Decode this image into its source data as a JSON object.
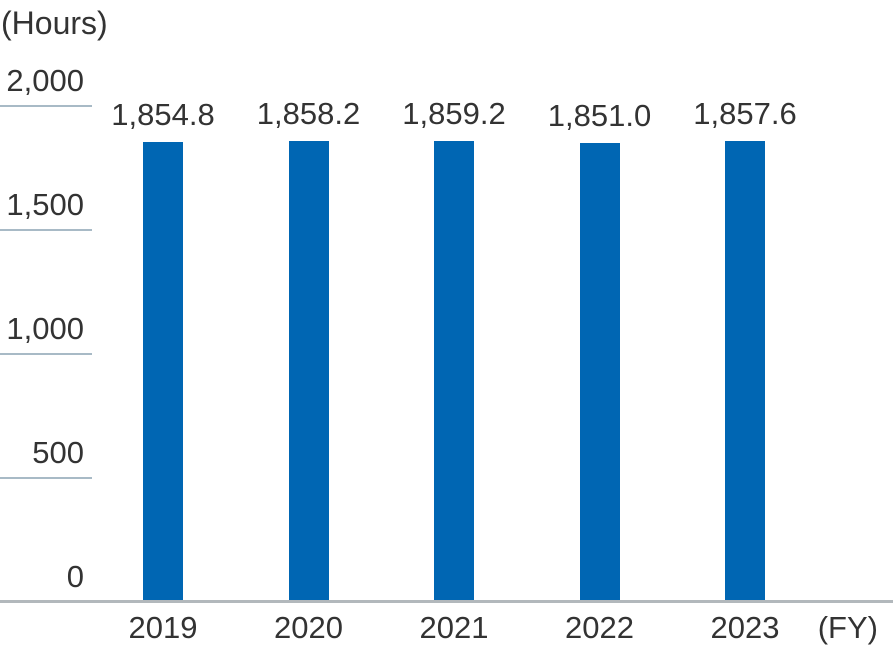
{
  "chart_data": {
    "type": "bar",
    "title": "",
    "unit_label": "(Hours)",
    "x_axis_label": "(FY)",
    "categories": [
      "2019",
      "2020",
      "2021",
      "2022",
      "2023"
    ],
    "values": [
      1854.8,
      1858.2,
      1859.2,
      1851.0,
      1857.6
    ],
    "value_labels": [
      "1,854.8",
      "1,858.2",
      "1,859.2",
      "1,851.0",
      "1,857.6"
    ],
    "y_ticks": [
      "2,000",
      "1,500",
      "1,000",
      "500",
      "0"
    ],
    "y_tick_values": [
      2000,
      1500,
      1000,
      500,
      0
    ],
    "ylim": [
      0,
      2000
    ],
    "grid": "left-stub-gridlines",
    "legend_position": "none",
    "colors": {
      "bar": "#0066b3",
      "gridline": "#a8bac6",
      "axis_line": "#b2b8bc",
      "text": "#333333",
      "background": "#ffffff"
    }
  }
}
